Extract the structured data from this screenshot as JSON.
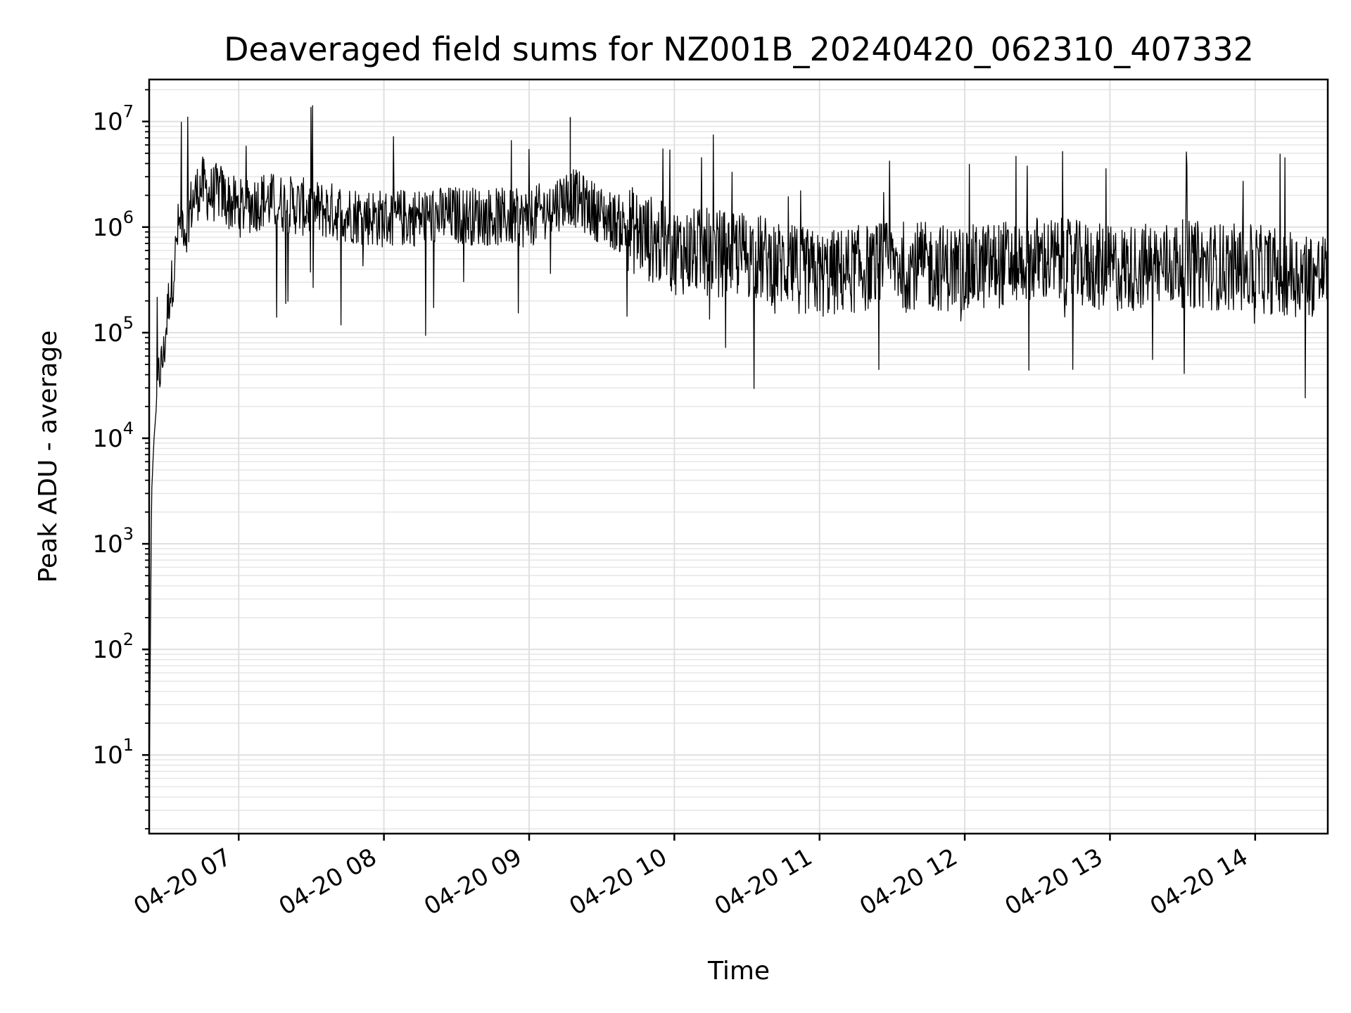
{
  "chart_data": {
    "type": "line",
    "title": "Deaveraged field sums for NZ001B_20240420_062310_407332",
    "xlabel": "Time",
    "ylabel": "Peak ADU - average",
    "yscale": "log",
    "xlim": [
      "04-20 06:23",
      "04-20 14:30"
    ],
    "ylim": [
      1.8,
      25000000
    ],
    "grid": true,
    "x_tick_labels": [
      "04-20 07",
      "04-20 08",
      "04-20 09",
      "04-20 10",
      "04-20 11",
      "04-20 12",
      "04-20 13",
      "04-20 14"
    ],
    "y_tick_labels": [
      {
        "base": "10",
        "exp": "1"
      },
      {
        "base": "10",
        "exp": "2"
      },
      {
        "base": "10",
        "exp": "3"
      },
      {
        "base": "10",
        "exp": "4"
      },
      {
        "base": "10",
        "exp": "5"
      },
      {
        "base": "10",
        "exp": "6"
      },
      {
        "base": "10",
        "exp": "7"
      }
    ],
    "line_color": "#000000",
    "series": [
      {
        "x": [
          "04-20 06:23",
          "04-20 06:24",
          "04-20 06:25",
          "04-20 06:26",
          "04-20 06:27",
          "04-20 06:29",
          "04-20 06:31",
          "04-20 06:33",
          "04-20 06:35",
          "04-20 06:37",
          "04-20 06:38",
          "04-20 06:40",
          "04-20 06:42",
          "04-20 06:45",
          "04-20 06:48",
          "04-20 06:52",
          "04-20 06:55",
          "04-20 07:00",
          "04-20 07:10",
          "04-20 07:30",
          "04-20 08:00",
          "04-20 08:30",
          "04-20 09:00",
          "04-20 09:17",
          "04-20 09:30",
          "04-20 10:00",
          "04-20 10:30",
          "04-20 11:00",
          "04-20 11:30",
          "04-20 12:00",
          "04-20 12:30",
          "04-20 13:00",
          "04-20 13:30",
          "04-20 14:00",
          "04-20 14:30"
        ],
        "y": [
          4,
          3000,
          10000,
          20000,
          40000,
          60000,
          200000,
          350000,
          1000000,
          1200000,
          900000,
          1500000,
          2000000,
          2500000,
          2000000,
          2200000,
          1800000,
          1500000,
          1800000,
          1500000,
          1200000,
          1300000,
          1200000,
          2000000,
          1300000,
          600000,
          550000,
          350000,
          450000,
          400000,
          500000,
          400000,
          450000,
          400000,
          350000
        ]
      }
    ]
  }
}
